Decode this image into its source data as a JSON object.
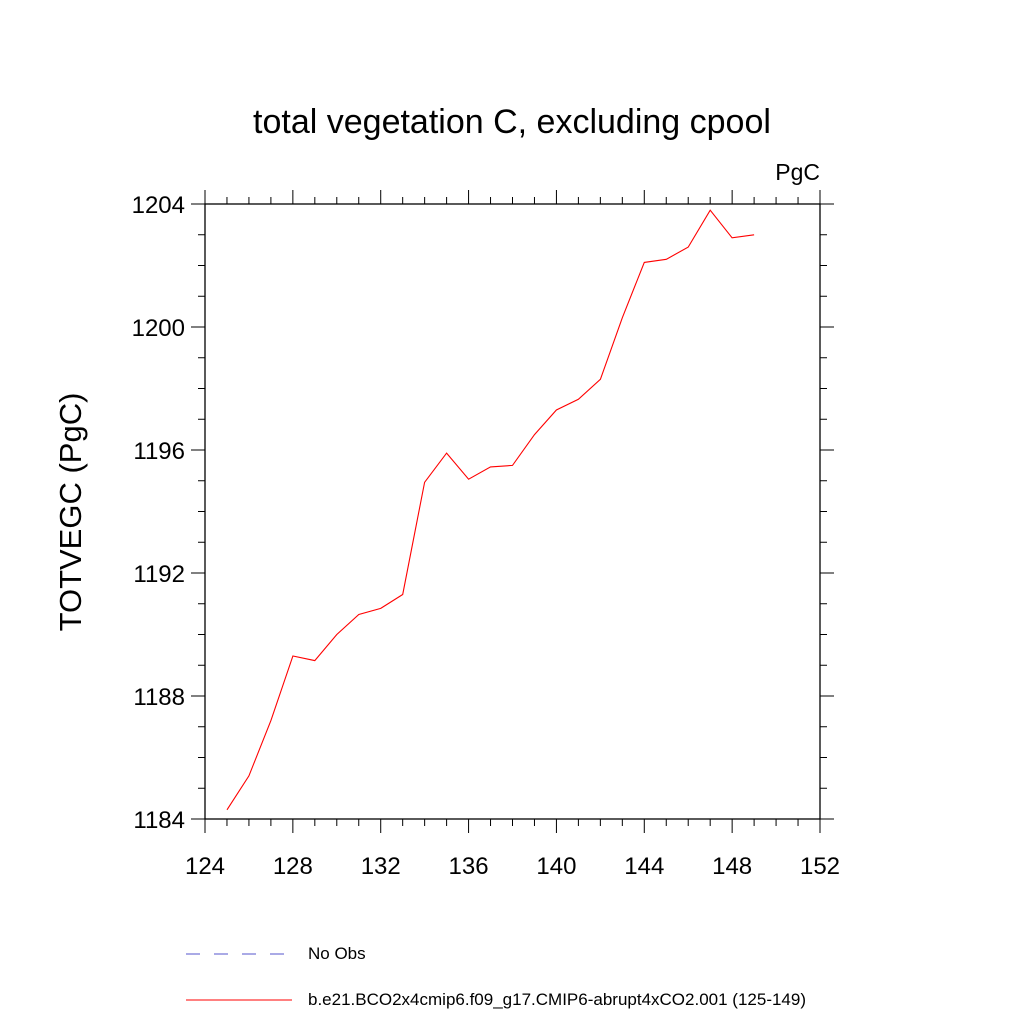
{
  "chart_data": {
    "type": "line",
    "title": "total vegetation C, excluding cpool",
    "units_label": "PgC",
    "ylabel": "TOTVEGC  (PgC)",
    "xlabel": "",
    "xlim": [
      124,
      152
    ],
    "ylim": [
      1184,
      1204
    ],
    "xticks": [
      124,
      128,
      132,
      136,
      140,
      144,
      148,
      152
    ],
    "yticks": [
      1184,
      1188,
      1192,
      1196,
      1200,
      1204
    ],
    "x_minor_step": 1,
    "y_minor_step": 1,
    "series": [
      {
        "name": "b.e21.BCO2x4cmip6.f09_g17.CMIP6-abrupt4xCO2.001 (125-149)",
        "color": "#ff0000",
        "style": "solid",
        "x": [
          125,
          126,
          127,
          128,
          129,
          130,
          131,
          132,
          133,
          134,
          135,
          136,
          137,
          138,
          139,
          140,
          141,
          142,
          143,
          144,
          145,
          146,
          147,
          148,
          149
        ],
        "values": [
          1184.3,
          1185.4,
          1187.2,
          1189.3,
          1189.15,
          1190.0,
          1190.65,
          1190.85,
          1191.3,
          1194.95,
          1195.9,
          1195.05,
          1195.45,
          1195.5,
          1196.5,
          1197.3,
          1197.65,
          1198.3,
          1200.3,
          1202.1,
          1202.2,
          1202.6,
          1203.8,
          1202.9,
          1203.0
        ]
      }
    ],
    "legend": [
      {
        "label": "No Obs",
        "color": "#5555cc",
        "style": "dashed"
      },
      {
        "label": "b.e21.BCO2x4cmip6.f09_g17.CMIP6-abrupt4xCO2.001 (125-149)",
        "color": "#ff0000",
        "style": "solid"
      }
    ],
    "legend_position": "bottom"
  }
}
